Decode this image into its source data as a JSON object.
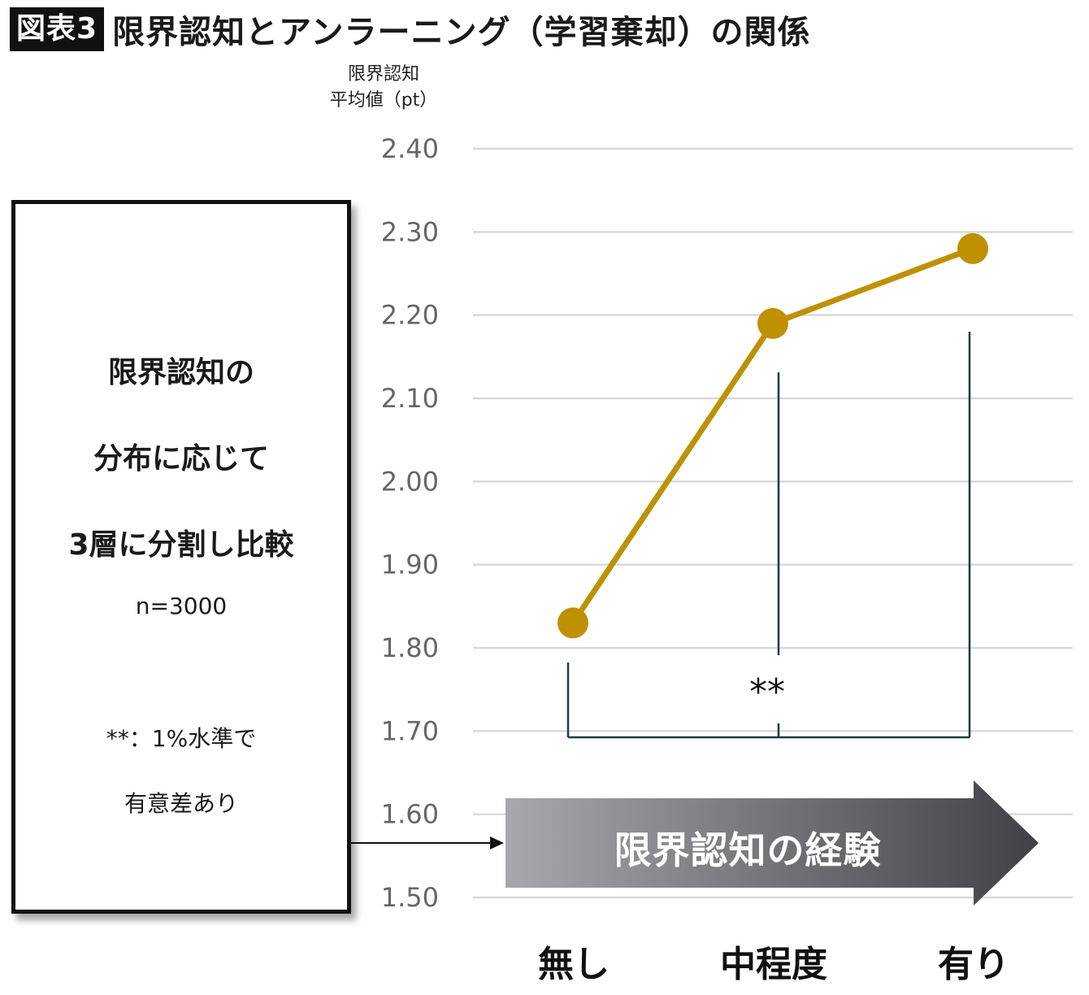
{
  "title": {
    "badge": "図表3",
    "text": "限界認知とアンラーニング（学習棄却）の関係"
  },
  "chart_data": {
    "type": "line",
    "ylabel_line1": "限界認知",
    "ylabel_line2": "平均値（pt）",
    "categories": [
      "無し",
      "中程度",
      "有り"
    ],
    "series": [
      {
        "values": [
          1.83,
          2.19,
          2.28
        ],
        "color": "#bf9000"
      }
    ],
    "ylim": [
      1.5,
      2.4
    ],
    "yticks": [
      "1.50",
      "1.60",
      "1.70",
      "1.80",
      "1.90",
      "2.00",
      "2.10",
      "2.20",
      "2.30",
      "2.40"
    ],
    "grid": true,
    "significance": "**",
    "arrow_label": "限界認知の経験"
  },
  "info_box": {
    "line1": "限界認知の",
    "line2": "分布に応じて",
    "line3": "3層に分割し比較",
    "n": "n=3000",
    "note1": "**：1%水準で",
    "note2": "有意差あり"
  },
  "colors": {
    "line": "#bf9000",
    "grid": "#d9d9d9",
    "bracket": "#1f3a48",
    "arrow_light": "#a6a8ac",
    "arrow_dark": "#404146"
  }
}
